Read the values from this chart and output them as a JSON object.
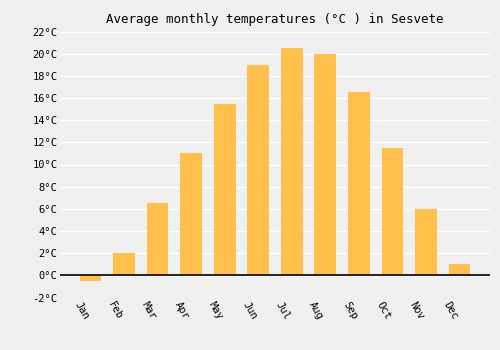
{
  "months": [
    "Jan",
    "Feb",
    "Mar",
    "Apr",
    "May",
    "Jun",
    "Jul",
    "Aug",
    "Sep",
    "Oct",
    "Nov",
    "Dec"
  ],
  "temperatures": [
    -0.5,
    2.0,
    6.5,
    11.0,
    15.5,
    19.0,
    20.5,
    20.0,
    16.5,
    11.5,
    6.0,
    1.0
  ],
  "bar_color": "#FFC04C",
  "title": "Average monthly temperatures (°C ) in Sesvete",
  "ylim": [
    -2,
    22
  ],
  "yticks": [
    -2,
    0,
    2,
    4,
    6,
    8,
    10,
    12,
    14,
    16,
    18,
    20,
    22
  ],
  "background_color": "#f0f0f0",
  "grid_color": "#ffffff",
  "title_fontsize": 9,
  "tick_fontsize": 7.5,
  "font_family": "monospace",
  "xlabel_rotation": -60
}
